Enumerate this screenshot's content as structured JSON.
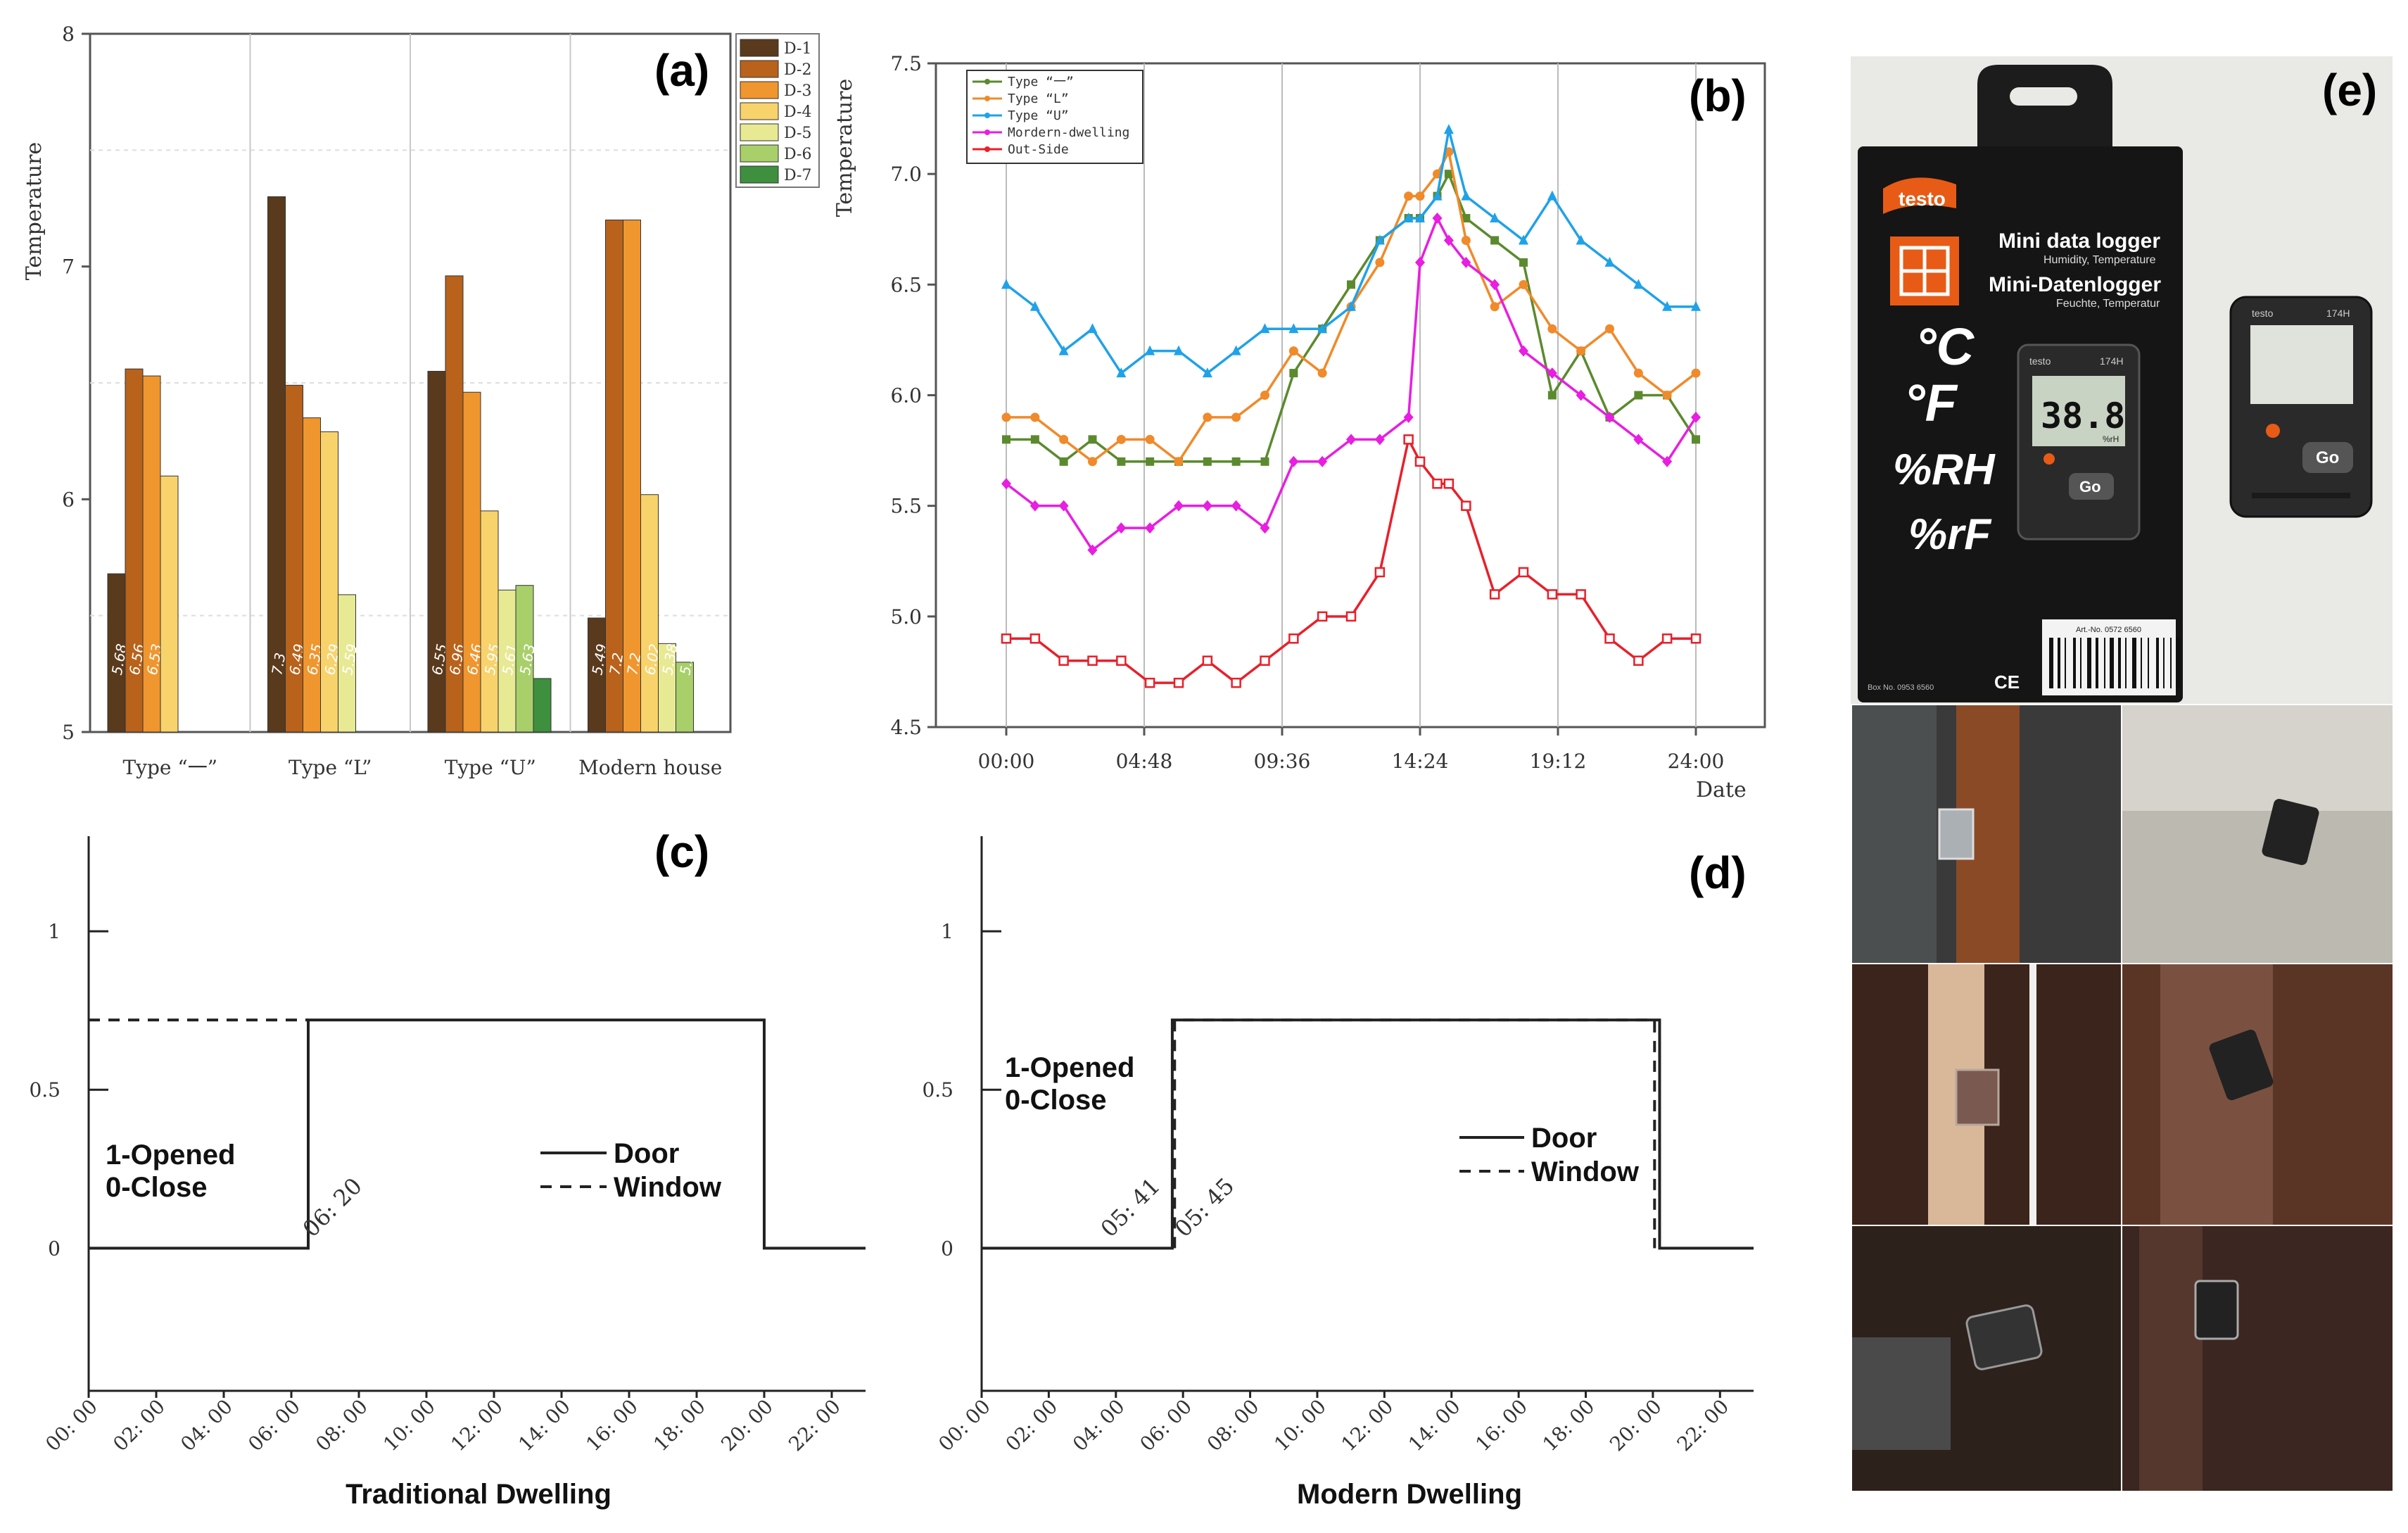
{
  "chart_data": [
    {
      "id": "a",
      "type": "bar",
      "panel_label": "(a)",
      "ylabel": "Temperature",
      "ylim": [
        5,
        8
      ],
      "yticks": [
        5,
        6,
        7,
        8
      ],
      "categories": [
        "Type “一”",
        "Type “L”",
        "Type “U”",
        "Modern house"
      ],
      "series": [
        {
          "name": "D-1",
          "color": "#5a3a1c",
          "values": [
            5.68,
            7.3,
            6.55,
            5.49
          ]
        },
        {
          "name": "D-2",
          "color": "#b8621b",
          "values": [
            6.56,
            6.49,
            6.96,
            7.2
          ]
        },
        {
          "name": "D-3",
          "color": "#f0962e",
          "values": [
            6.53,
            6.35,
            6.46,
            7.2
          ]
        },
        {
          "name": "D-4",
          "color": "#f8d36b",
          "values": [
            6.1,
            6.29,
            5.95,
            6.02
          ]
        },
        {
          "name": "D-5",
          "color": "#e7ea93",
          "values": [
            null,
            5.59,
            5.61,
            5.38
          ]
        },
        {
          "name": "D-6",
          "color": "#a8cf6a",
          "values": [
            null,
            null,
            5.63,
            5.3
          ]
        },
        {
          "name": "D-7",
          "color": "#3e8f3e",
          "values": [
            null,
            null,
            5.23,
            null
          ]
        }
      ],
      "labels": [
        [
          "5.68",
          "6.56",
          "6.53",
          "",
          "",
          "",
          ""
        ],
        [
          "7.3",
          "6.49",
          "6.35",
          "6.29",
          "5.59",
          "",
          ""
        ],
        [
          "6.55",
          "6.96",
          "6.46",
          "5.95",
          "5.61",
          "5.63",
          "5.23"
        ],
        [
          "5.49",
          "7.2",
          "7.2",
          "6.02",
          "5.38",
          "5.3",
          ""
        ]
      ]
    },
    {
      "id": "b",
      "type": "line",
      "panel_label": "(b)",
      "ylabel": "Temperature",
      "xlabel": "Date",
      "ylim": [
        4.5,
        7.5
      ],
      "yticks": [
        "4.5",
        "5.0",
        "5.5",
        "6.0",
        "6.5",
        "7.0",
        "7.5"
      ],
      "xlim": [
        0,
        1.1
      ],
      "xticks": [
        {
          "v": 0,
          "label": "00:00"
        },
        {
          "v": 0.2,
          "label": "04:48"
        },
        {
          "v": 0.4,
          "label": "09:36"
        },
        {
          "v": 0.6,
          "label": "14:24"
        },
        {
          "v": 0.8,
          "label": "19:12"
        },
        {
          "v": 1.0,
          "label": "24:00"
        }
      ],
      "x": [
        0,
        0.0417,
        0.0833,
        0.125,
        0.1667,
        0.2083,
        0.25,
        0.2917,
        0.3333,
        0.375,
        0.4167,
        0.4583,
        0.5,
        0.5417,
        0.5833,
        0.6,
        0.625,
        0.6417,
        0.6667,
        0.7083,
        0.75,
        0.7917,
        0.8333,
        0.875,
        0.9167,
        0.9583,
        1.0
      ],
      "series": [
        {
          "name": "Type “一”",
          "color": "#5b8a2e",
          "marker": "square",
          "values": [
            5.8,
            5.8,
            5.7,
            5.8,
            5.7,
            5.7,
            5.7,
            5.7,
            5.7,
            5.7,
            6.1,
            6.3,
            6.5,
            6.7,
            6.8,
            6.8,
            6.9,
            7.0,
            6.8,
            6.7,
            6.6,
            6.0,
            6.2,
            5.9,
            6.0,
            6.0,
            5.8
          ]
        },
        {
          "name": "Type “L”",
          "color": "#f08a2a",
          "marker": "circle",
          "values": [
            5.9,
            5.9,
            5.8,
            5.7,
            5.8,
            5.8,
            5.7,
            5.9,
            5.9,
            6.0,
            6.2,
            6.1,
            6.4,
            6.6,
            6.9,
            6.9,
            7.0,
            7.1,
            6.7,
            6.4,
            6.5,
            6.3,
            6.2,
            6.3,
            6.1,
            6.0,
            6.1
          ]
        },
        {
          "name": "Type “U”",
          "color": "#1fa2e8",
          "marker": "triangle",
          "values": [
            6.5,
            6.4,
            6.2,
            6.3,
            6.1,
            6.2,
            6.2,
            6.1,
            6.2,
            6.3,
            6.3,
            6.3,
            6.4,
            6.7,
            6.8,
            6.8,
            6.9,
            7.2,
            6.9,
            6.8,
            6.7,
            6.9,
            6.7,
            6.6,
            6.5,
            6.4,
            6.4
          ]
        },
        {
          "name": "Mordern-dwelling",
          "color": "#e81ee0",
          "marker": "diamond",
          "values": [
            5.6,
            5.5,
            5.5,
            5.3,
            5.4,
            5.4,
            5.5,
            5.5,
            5.5,
            5.4,
            5.7,
            5.7,
            5.8,
            5.8,
            5.9,
            6.6,
            6.8,
            6.7,
            6.6,
            6.5,
            6.2,
            6.1,
            6.0,
            5.9,
            5.8,
            5.7,
            5.9
          ]
        },
        {
          "name": "Out-Side",
          "color": "#e8202a",
          "marker": "open-square",
          "values": [
            4.9,
            4.9,
            4.8,
            4.8,
            4.8,
            4.7,
            4.7,
            4.8,
            4.7,
            4.8,
            4.9,
            5.0,
            5.0,
            5.2,
            5.8,
            5.7,
            5.6,
            5.6,
            5.5,
            5.1,
            5.2,
            5.1,
            5.1,
            4.9,
            4.8,
            4.9,
            4.9
          ]
        }
      ]
    },
    {
      "id": "c",
      "type": "step",
      "panel_label": "(c)",
      "xlabel": "Traditional Dwelling",
      "ylim": [
        -0.45,
        1.3
      ],
      "yticks": [
        "0",
        "0.5",
        "1"
      ],
      "xlim": [
        0,
        23
      ],
      "xticks": [
        "00: 00",
        "02: 00",
        "04: 00",
        "06: 00",
        "08: 00",
        "10: 00",
        "12: 00",
        "14: 00",
        "16: 00",
        "18: 00",
        "20: 00",
        "22: 00"
      ],
      "legend_text": [
        "1-Opened",
        "0-Close"
      ],
      "legend": [
        {
          "name": "Door",
          "style": "solid"
        },
        {
          "name": "Window",
          "style": "dashed"
        }
      ],
      "annotations": [
        {
          "x": 6.33,
          "text": "06: 20"
        }
      ],
      "door": [
        [
          0,
          0
        ],
        [
          6.5,
          0
        ],
        [
          6.5,
          0.72
        ],
        [
          20,
          0.72
        ],
        [
          20,
          0
        ],
        [
          23,
          0
        ]
      ],
      "window": [
        [
          0,
          0.72
        ],
        [
          6.5,
          0.72
        ]
      ]
    },
    {
      "id": "d",
      "type": "step",
      "panel_label": "(d)",
      "xlabel": "Modern Dwelling",
      "ylim": [
        -0.45,
        1.3
      ],
      "yticks": [
        "0",
        "0.5",
        "1"
      ],
      "xlim": [
        0,
        23
      ],
      "xticks": [
        "00: 00",
        "02: 00",
        "04: 00",
        "06: 00",
        "08: 00",
        "10: 00",
        "12: 00",
        "14: 00",
        "16: 00",
        "18: 00",
        "20: 00",
        "22: 00"
      ],
      "legend_text": [
        "1-Opened",
        "0-Close"
      ],
      "legend": [
        {
          "name": "Door",
          "style": "solid"
        },
        {
          "name": "Window",
          "style": "dashed"
        }
      ],
      "annotations": [
        {
          "x": 5.68,
          "text": "05: 41"
        },
        {
          "x": 5.75,
          "text": "05: 45"
        }
      ],
      "door": [
        [
          0,
          0
        ],
        [
          5.68,
          0
        ],
        [
          5.68,
          0.72
        ],
        [
          20.2,
          0.72
        ],
        [
          20.2,
          0
        ],
        [
          23,
          0
        ]
      ],
      "window": [
        [
          5.75,
          0
        ],
        [
          5.75,
          0.72
        ],
        [
          20.05,
          0.72
        ],
        [
          20.05,
          0
        ]
      ]
    }
  ],
  "photo_panel": {
    "panel_label": "(e)",
    "box_brand": "testo",
    "box_title_1": "Mini data logger",
    "box_sub_1": "Humidity, Temperature",
    "box_title_2": "Mini-Datenlogger",
    "box_sub_2": "Feuchte, Temperatur",
    "units": [
      "°C",
      "°F",
      "%RH",
      "%rF"
    ],
    "screen_value": "38.8",
    "screen_unit": "%rH",
    "device_model": "174H",
    "go_label": "Go",
    "art_no": "Art.-No. 0572 6560",
    "box_no": "Box No. 0953 6560",
    "ce": "CE"
  }
}
